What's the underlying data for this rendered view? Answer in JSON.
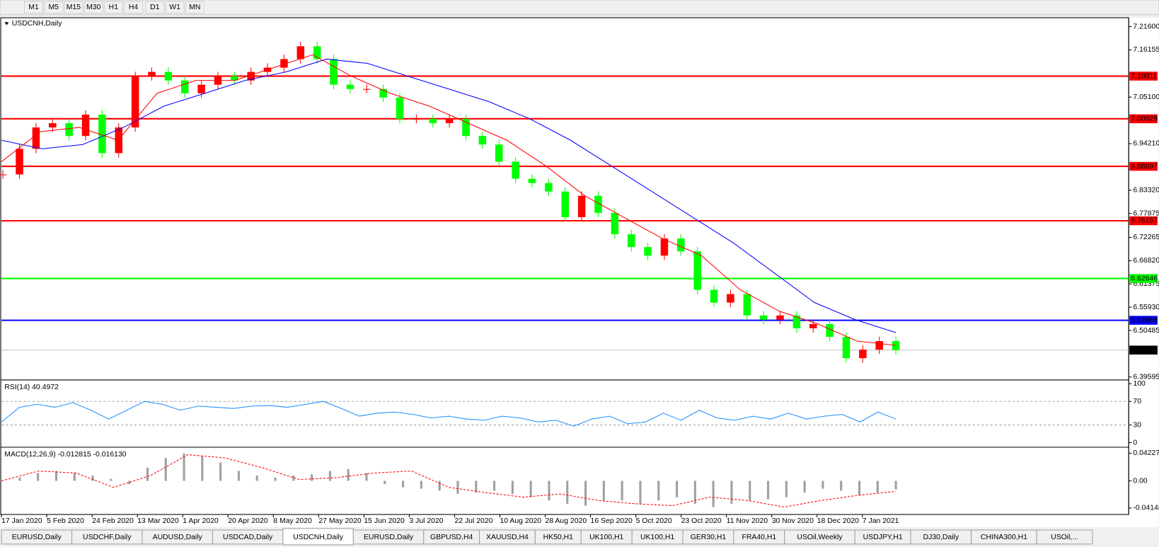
{
  "toolbar": {
    "timeframes": [
      "M1",
      "M5",
      "M15",
      "M30",
      "H1",
      "H4",
      "D1",
      "W1",
      "MN"
    ]
  },
  "chart_data": {
    "type": "candlestick",
    "title": "USDCNH,Daily",
    "ohlc": [
      6.46051,
      6.46492,
      6.45527,
      6.45893
    ],
    "closes": [
      6.87,
      6.93,
      6.98,
      6.99,
      6.96,
      7.01,
      6.92,
      6.98,
      7.1,
      7.11,
      7.09,
      7.06,
      7.08,
      7.1,
      7.09,
      7.11,
      7.12,
      7.14,
      7.17,
      7.14,
      7.08,
      7.07,
      7.07,
      7.05,
      7.0,
      7.0,
      6.99,
      7.0,
      6.96,
      6.94,
      6.9,
      6.86,
      6.85,
      6.83,
      6.77,
      6.82,
      6.78,
      6.73,
      6.7,
      6.68,
      6.72,
      6.69,
      6.6,
      6.57,
      6.59,
      6.54,
      6.53,
      6.54,
      6.51,
      6.52,
      6.49,
      6.44,
      6.46,
      6.48,
      6.45893
    ],
    "up_color": "#ff0000",
    "down_color": "#00ff00",
    "ma_fast": {
      "color": "#ff0000",
      "values": [
        6.9,
        6.97,
        6.98,
        6.95,
        7.06,
        7.09,
        7.09,
        7.12,
        7.15,
        7.1,
        7.06,
        7.03,
        6.99,
        6.95,
        6.89,
        6.82,
        6.77,
        6.72,
        6.68,
        6.6,
        6.55,
        6.52,
        6.48,
        6.47
      ]
    },
    "ma_slow": {
      "color": "#0000ff",
      "values": [
        6.95,
        6.93,
        6.94,
        6.98,
        7.03,
        7.06,
        7.09,
        7.11,
        7.14,
        7.13,
        7.1,
        7.07,
        7.04,
        7.0,
        6.95,
        6.89,
        6.83,
        6.77,
        6.71,
        6.64,
        6.57,
        6.53,
        6.5
      ]
    },
    "ylim": [
      6.3925,
      7.2333
    ],
    "yticks": [
      {
        "value": 7.216,
        "label": "7.21600"
      },
      7.16155,
      {
        "value": 7.051,
        "label": "7.05100"
      },
      {
        "value": 6.9421,
        "label": "6.94210"
      },
      {
        "value": 6.8332,
        "label": "6.83320"
      },
      6.77875,
      6.72265,
      {
        "value": 6.6682,
        "label": "6.66820"
      },
      6.61375,
      {
        "value": 6.5593,
        "label": "6.55930"
      },
      6.50485,
      6.39595
    ],
    "levels": [
      {
        "value": 7.10011,
        "color": "#ff0000"
      },
      {
        "value": 7.00029,
        "color": "#ff0000"
      },
      {
        "value": 6.88897,
        "color": "#ff0000"
      },
      {
        "value": 6.76157,
        "color": "#ff0000"
      },
      {
        "value": 6.62646,
        "color": "#00ff00"
      },
      {
        "value": 6.52865,
        "color": "#0000ff"
      }
    ],
    "x_labels": [
      "17 Jan 2020",
      "5 Feb 2020",
      "24 Feb 2020",
      "13 Mar 2020",
      "1 Apr 2020",
      "20 Apr 2020",
      "8 May 2020",
      "27 May 2020",
      "15 Jun 2020",
      "3 Jul 2020",
      "22 Jul 2020",
      "10 Aug 2020",
      "28 Aug 2020",
      "16 Sep 2020",
      "5 Oct 2020",
      "23 Oct 2020",
      "11 Nov 2020",
      "30 Nov 2020",
      "18 Dec 2020",
      "7 Jan 2021"
    ]
  },
  "rsi": {
    "title": "RSI(14) 40.4972",
    "color": "#1e90ff",
    "values": [
      35,
      60,
      65,
      60,
      68,
      55,
      40,
      55,
      70,
      65,
      55,
      62,
      60,
      58,
      62,
      63,
      60,
      65,
      70,
      58,
      45,
      50,
      52,
      48,
      42,
      45,
      40,
      38,
      45,
      42,
      35,
      38,
      28,
      40,
      45,
      32,
      35,
      50,
      38,
      55,
      42,
      38,
      45,
      40,
      50,
      40,
      45,
      48,
      35,
      52,
      40
    ],
    "ylim": [
      -6.5,
      105.2
    ],
    "yticks": [
      100,
      70,
      30,
      0
    ],
    "levels": [
      70,
      30
    ]
  },
  "macd": {
    "title": "MACD(12,26,9) -0.012815 -0.016130",
    "hist_color": "#a0a0a0",
    "signal_color": "#ff0000",
    "histogram": [
      0.0,
      0.005,
      0.012,
      0.015,
      0.012,
      0.008,
      0.003,
      -0.005,
      0.02,
      0.035,
      0.042,
      0.038,
      0.028,
      0.015,
      0.008,
      0.005,
      0.008,
      0.01,
      0.015,
      0.018,
      0.012,
      -0.005,
      -0.01,
      -0.012,
      -0.015,
      -0.02,
      -0.018,
      -0.015,
      -0.02,
      -0.025,
      -0.03,
      -0.035,
      -0.038,
      -0.03,
      -0.03,
      -0.035,
      -0.03,
      -0.025,
      -0.035,
      -0.04,
      -0.035,
      -0.03,
      -0.028,
      -0.025,
      -0.018,
      -0.012,
      -0.015,
      -0.022,
      -0.018,
      -0.013
    ],
    "signal": [
      0.0,
      0.015,
      0.012,
      -0.01,
      0.008,
      0.04,
      0.035,
      0.02,
      0.002,
      0.005,
      0.012,
      0.015,
      -0.01,
      -0.018,
      -0.025,
      -0.02,
      -0.03,
      -0.035,
      -0.038,
      -0.025,
      -0.03,
      -0.04,
      -0.03,
      -0.022,
      -0.016
    ],
    "ylim": [
      -0.0503,
      0.0503
    ],
    "yticks": [
      0.042275,
      {
        "value": 0,
        "label": "0.00"
      },
      -0.04148
    ]
  },
  "tabs": {
    "items": [
      "EURUSD,Daily",
      "USDCHF,Daily",
      "AUDUSD,Daily",
      "USDCAD,Daily",
      "USDCNH,Daily",
      "EURUSD,Daily",
      "GBPUSD,H4",
      "XAUUSD,H4",
      "HK50,H1",
      "UK100,H1",
      "UK100,H1",
      "GER30,H1",
      "FRA40,H1",
      "USOil,Weekly",
      "USDJPY,H1",
      "DJ30,Daily",
      "CHINA300,H1",
      "USOil,..."
    ],
    "active": 4
  }
}
